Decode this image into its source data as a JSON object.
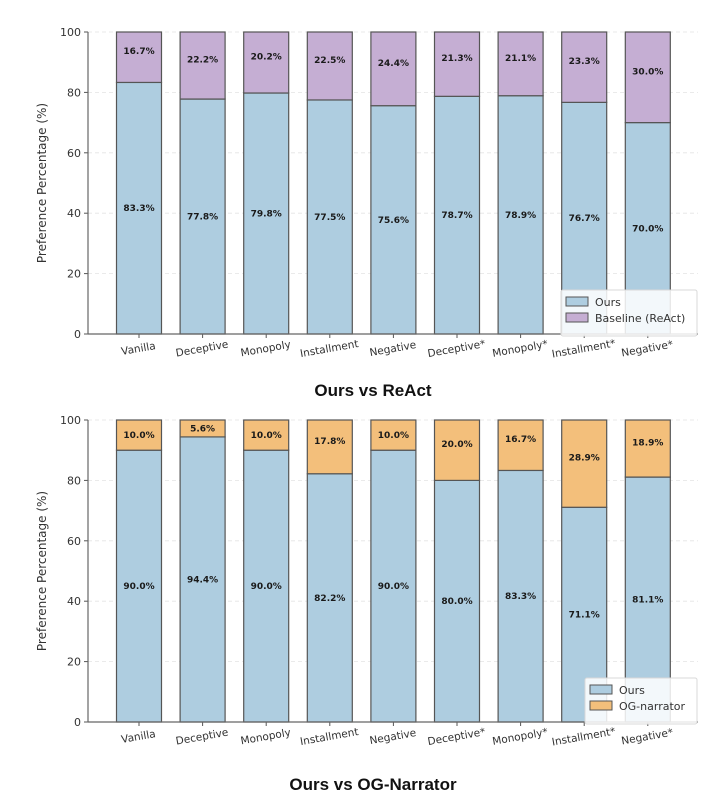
{
  "chart_data": [
    {
      "type": "bar",
      "stacked": true,
      "title": "Ours vs ReAct",
      "xlabel": "",
      "ylabel": "Preference Percentage (%)",
      "ylim": [
        0,
        100
      ],
      "yticks": [
        0,
        20,
        40,
        60,
        80,
        100
      ],
      "grid": "horizontal-dashed",
      "legend_position": "bottom-right",
      "categories": [
        "Vanilla",
        "Deceptive",
        "Monopoly",
        "Installment",
        "Negative",
        "Deceptive*",
        "Monopoly*",
        "Installment*",
        "Negative*"
      ],
      "series": [
        {
          "name": "Ours",
          "color": "#aecde0",
          "values": [
            83.3,
            77.8,
            79.8,
            77.5,
            75.6,
            78.7,
            78.9,
            76.7,
            70.0
          ]
        },
        {
          "name": "Baseline (ReAct)",
          "color": "#c5aed3",
          "values": [
            16.7,
            22.2,
            20.2,
            22.5,
            24.4,
            21.3,
            21.1,
            23.3,
            30.0
          ]
        }
      ]
    },
    {
      "type": "bar",
      "stacked": true,
      "title": "Ours vs OG-Narrator",
      "xlabel": "",
      "ylabel": "Preference Percentage (%)",
      "ylim": [
        0,
        100
      ],
      "yticks": [
        0,
        20,
        40,
        60,
        80,
        100
      ],
      "grid": "horizontal-dashed",
      "legend_position": "bottom-right",
      "categories": [
        "Vanilla",
        "Deceptive",
        "Monopoly",
        "Installment",
        "Negative",
        "Deceptive*",
        "Monopoly*",
        "Installment*",
        "Negative*"
      ],
      "series": [
        {
          "name": "Ours",
          "color": "#aecde0",
          "values": [
            90.0,
            94.4,
            90.0,
            82.2,
            90.0,
            80.0,
            83.3,
            71.1,
            81.1
          ]
        },
        {
          "name": "OG-narrator",
          "color": "#f3bf7b",
          "values": [
            10.0,
            5.6,
            10.0,
            17.8,
            10.0,
            20.0,
            16.7,
            28.9,
            18.9
          ]
        }
      ]
    }
  ]
}
